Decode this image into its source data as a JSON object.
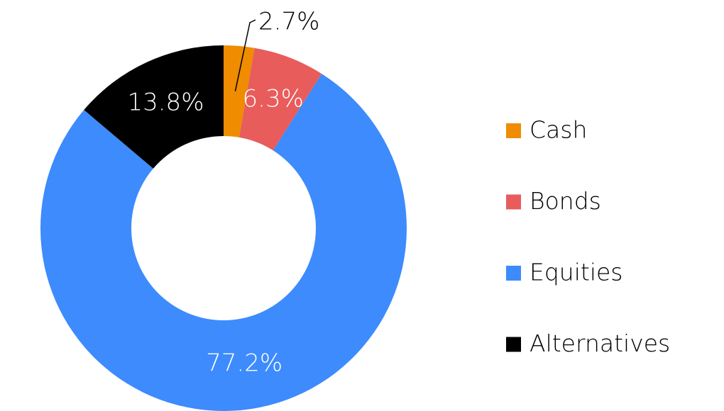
{
  "chart_data": {
    "type": "donut",
    "categories": [
      "Cash",
      "Bonds",
      "Equities",
      "Alternatives"
    ],
    "values": [
      2.7,
      6.3,
      77.2,
      13.8
    ],
    "value_labels": [
      "2.7%",
      "6.3%",
      "77.2%",
      "13.8%"
    ],
    "colors": [
      "#ef8c00",
      "#e85c5c",
      "#3d8bfd",
      "#000000"
    ],
    "legend": "right"
  }
}
